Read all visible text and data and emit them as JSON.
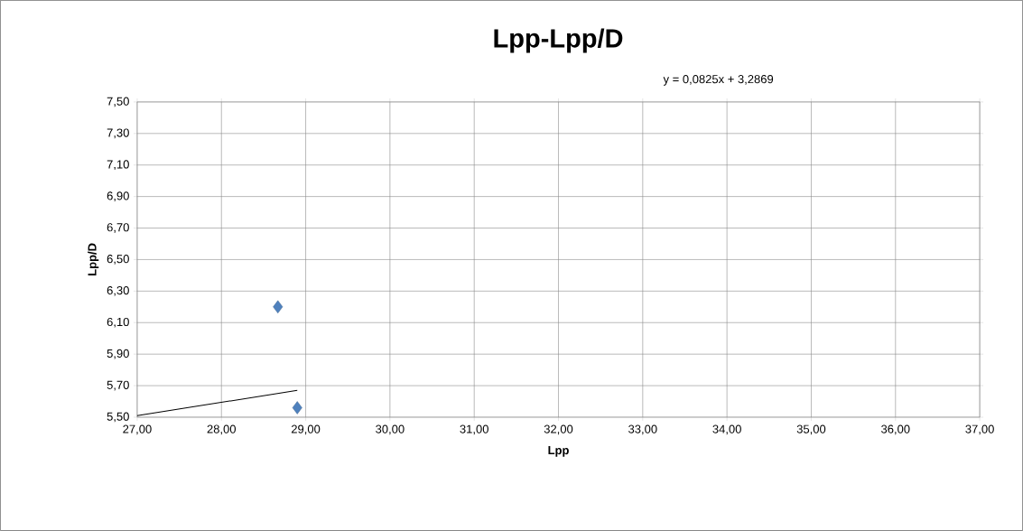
{
  "chart_data": {
    "type": "scatter",
    "title": "Lpp-Lpp/D",
    "xlabel": "Lpp",
    "ylabel": "Lpp/D",
    "annotations": [
      "y = 0,0825x + 3,2869"
    ],
    "series": [
      {
        "color": "#4f81bd",
        "x": [
          28.67,
          28.9
        ],
        "values": [
          6.2,
          5.56
        ],
        "marker": "diamond"
      },
      {
        "type": "line",
        "color": "#000000",
        "x": [
          27.0,
          28.9
        ],
        "values": [
          5.51,
          5.67
        ],
        "marker": "none",
        "line_style": "solid"
      }
    ],
    "xlim": [
      27,
      37
    ],
    "ylim": [
      5.5,
      7.5
    ],
    "xticks": [
      {
        "value": 27,
        "label": "27,00"
      },
      {
        "value": 28,
        "label": "28,00"
      },
      {
        "value": 29,
        "label": "29,00"
      },
      {
        "value": 30,
        "label": "30,00"
      },
      {
        "value": 31,
        "label": "31,00"
      },
      {
        "value": 32,
        "label": "32,00"
      },
      {
        "value": 33,
        "label": "33,00"
      },
      {
        "value": 34,
        "label": "34,00"
      },
      {
        "value": 35,
        "label": "35,00"
      },
      {
        "value": 36,
        "label": "36,00"
      },
      {
        "value": 37,
        "label": "37,00"
      }
    ],
    "yticks": [
      {
        "value": 5.5,
        "label": "5,50"
      },
      {
        "value": 5.7,
        "label": "5,70"
      },
      {
        "value": 5.9,
        "label": "5,90"
      },
      {
        "value": 6.1,
        "label": "6,10"
      },
      {
        "value": 6.3,
        "label": "6,30"
      },
      {
        "value": 6.5,
        "label": "6,50"
      },
      {
        "value": 6.7,
        "label": "6,70"
      },
      {
        "value": 6.9,
        "label": "6,90"
      },
      {
        "value": 7.1,
        "label": "7,10"
      },
      {
        "value": 7.3,
        "label": "7,30"
      },
      {
        "value": 7.5,
        "label": "7,50"
      }
    ],
    "grid": true
  }
}
